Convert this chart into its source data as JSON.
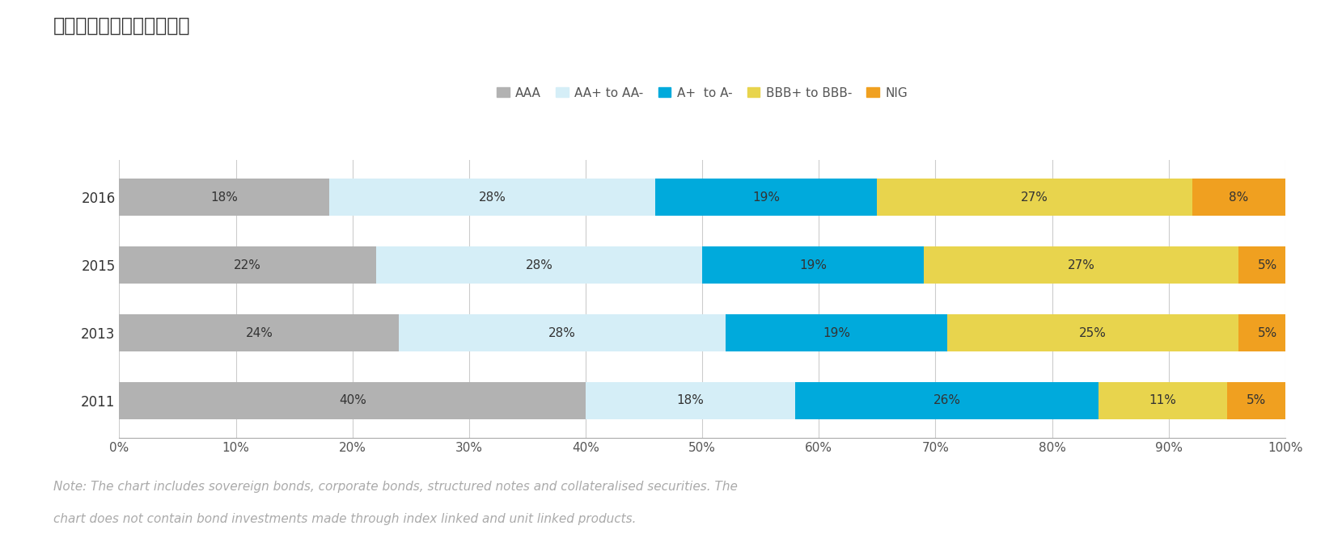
{
  "title": "図表　格付け別の債券内訳",
  "years": [
    "2016",
    "2015",
    "2013",
    "2011"
  ],
  "categories": [
    "AAA",
    "AA+ to AA-",
    "A+  to A-",
    "BBB+ to BBB-",
    "NIG"
  ],
  "colors": [
    "#b2b2b2",
    "#d5eef7",
    "#00aadc",
    "#e8d44d",
    "#f0a020"
  ],
  "values": {
    "2016": [
      18,
      28,
      19,
      27,
      8
    ],
    "2015": [
      22,
      28,
      19,
      27,
      5
    ],
    "2013": [
      24,
      28,
      19,
      25,
      5
    ],
    "2011": [
      40,
      18,
      26,
      11,
      5
    ]
  },
  "note_line1": "Note: The chart includes sovereign bonds, corporate bonds, structured notes and collateralised securities. The",
  "note_line2": "chart does not contain bond investments made through index linked and unit linked products.",
  "background_color": "#ffffff",
  "xlabel_ticks": [
    0,
    10,
    20,
    30,
    40,
    50,
    60,
    70,
    80,
    90,
    100
  ],
  "title_fontsize": 17,
  "legend_fontsize": 11,
  "bar_label_fontsize": 11,
  "note_fontsize": 11,
  "ytick_fontsize": 12
}
